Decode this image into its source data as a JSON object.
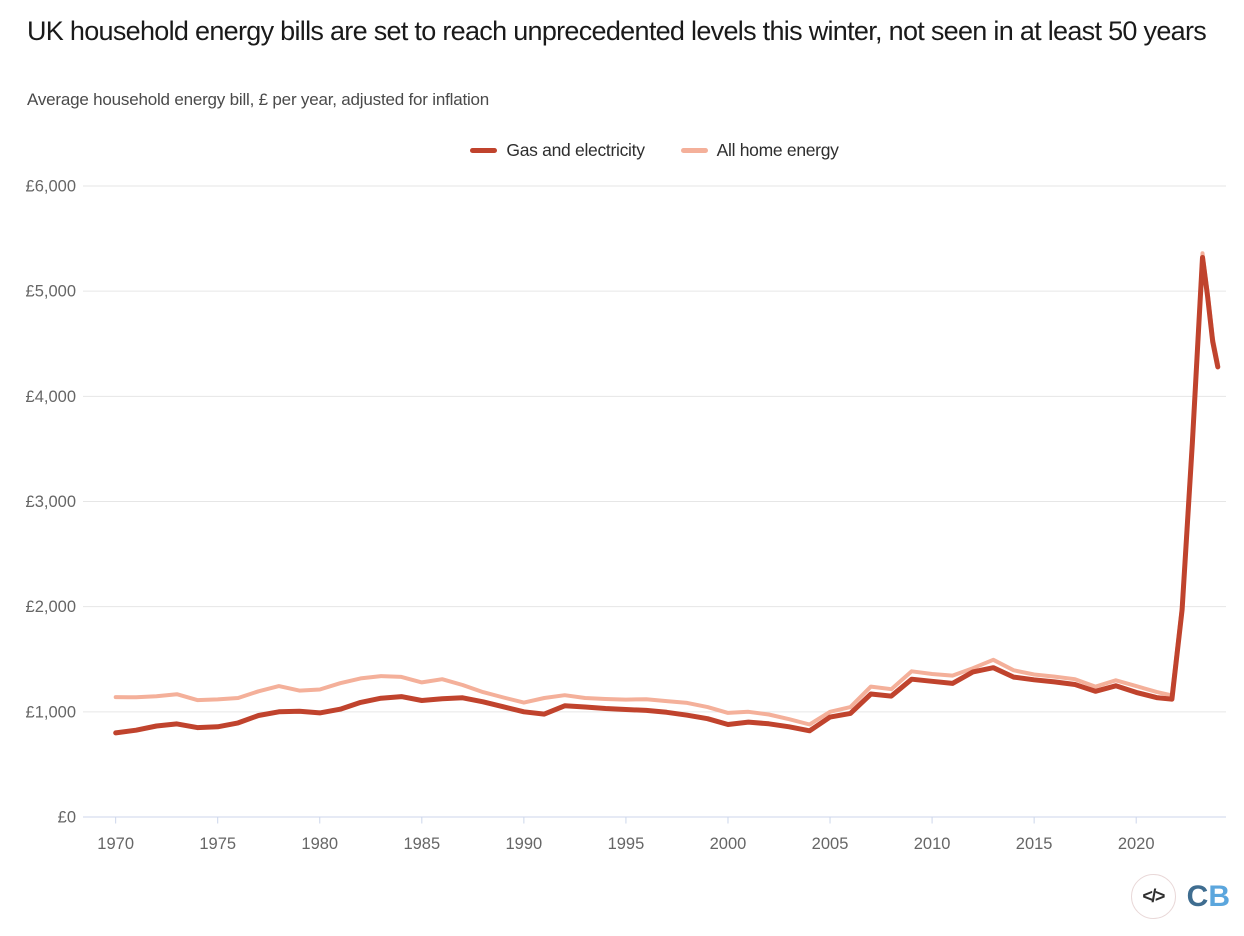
{
  "page": {
    "title": "UK household energy bills are set to reach unprecedented levels this winter, not seen in at least 50 years",
    "subtitle": "Average household energy bill, £ per year, adjusted for inflation"
  },
  "footer": {
    "code_icon": "</>",
    "logo_c": "C",
    "logo_b": "B",
    "logo_c_color": "#3f6d90",
    "logo_b_color": "#5ba6dd"
  },
  "chart_data": {
    "type": "line",
    "title": "UK household energy bills are set to reach unprecedented levels this winter, not seen in at least 50 years",
    "subtitle": "Average household energy bill, £ per year, adjusted for inflation",
    "xlabel": "",
    "ylabel": "£ per year",
    "x_range": [
      1968.4,
      2024.4
    ],
    "y_range": [
      0,
      6000
    ],
    "x_ticks": [
      1970,
      1975,
      1980,
      1985,
      1990,
      1995,
      2000,
      2005,
      2010,
      2015,
      2020
    ],
    "y_ticks": [
      0,
      1000,
      2000,
      3000,
      4000,
      5000,
      6000
    ],
    "y_tick_labels": [
      "£0",
      "£1,000",
      "£2,000",
      "£3,000",
      "£4,000",
      "£5,000",
      "£6,000"
    ],
    "grid": "horizontal",
    "legend_position": "top-center",
    "colors": {
      "grid": "#e6e6e6",
      "axis": "#ccd6eb",
      "tick_text": "#666666"
    },
    "series": [
      {
        "name": "Gas and electricity",
        "color": "#c0432d",
        "width": 5,
        "points": [
          [
            1970,
            800
          ],
          [
            1971,
            825
          ],
          [
            1972,
            865
          ],
          [
            1973,
            885
          ],
          [
            1974,
            850
          ],
          [
            1975,
            858
          ],
          [
            1976,
            895
          ],
          [
            1977,
            965
          ],
          [
            1978,
            1000
          ],
          [
            1979,
            1005
          ],
          [
            1980,
            990
          ],
          [
            1981,
            1025
          ],
          [
            1982,
            1090
          ],
          [
            1983,
            1130
          ],
          [
            1984,
            1145
          ],
          [
            1985,
            1108
          ],
          [
            1986,
            1125
          ],
          [
            1987,
            1133
          ],
          [
            1988,
            1095
          ],
          [
            1989,
            1048
          ],
          [
            1990,
            1000
          ],
          [
            1991,
            978
          ],
          [
            1992,
            1057
          ],
          [
            1993,
            1046
          ],
          [
            1994,
            1032
          ],
          [
            1995,
            1022
          ],
          [
            1996,
            1014
          ],
          [
            1997,
            996
          ],
          [
            1998,
            968
          ],
          [
            1999,
            935
          ],
          [
            2000,
            880
          ],
          [
            2001,
            902
          ],
          [
            2002,
            886
          ],
          [
            2003,
            858
          ],
          [
            2004,
            820
          ],
          [
            2005,
            950
          ],
          [
            2006,
            985
          ],
          [
            2007,
            1170
          ],
          [
            2008,
            1150
          ],
          [
            2009,
            1310
          ],
          [
            2010,
            1290
          ],
          [
            2011,
            1270
          ],
          [
            2012,
            1380
          ],
          [
            2013,
            1420
          ],
          [
            2014,
            1330
          ],
          [
            2015,
            1305
          ],
          [
            2016,
            1285
          ],
          [
            2017,
            1260
          ],
          [
            2018,
            1195
          ],
          [
            2019,
            1248
          ],
          [
            2020,
            1185
          ],
          [
            2021,
            1135
          ],
          [
            2021.75,
            1120
          ],
          [
            2022.25,
            1971
          ],
          [
            2022.75,
            3549
          ],
          [
            2023.25,
            5320
          ],
          [
            2023.5,
            4950
          ],
          [
            2023.75,
            4520
          ],
          [
            2024,
            4280
          ]
        ]
      },
      {
        "name": "All home energy",
        "color": "#f4b09a",
        "width": 4,
        "points": [
          [
            1970,
            1140
          ],
          [
            1971,
            1138
          ],
          [
            1972,
            1148
          ],
          [
            1973,
            1168
          ],
          [
            1974,
            1112
          ],
          [
            1975,
            1118
          ],
          [
            1976,
            1132
          ],
          [
            1977,
            1195
          ],
          [
            1978,
            1245
          ],
          [
            1979,
            1202
          ],
          [
            1980,
            1212
          ],
          [
            1981,
            1272
          ],
          [
            1982,
            1318
          ],
          [
            1983,
            1340
          ],
          [
            1984,
            1332
          ],
          [
            1985,
            1280
          ],
          [
            1986,
            1310
          ],
          [
            1987,
            1255
          ],
          [
            1988,
            1188
          ],
          [
            1989,
            1136
          ],
          [
            1990,
            1088
          ],
          [
            1991,
            1132
          ],
          [
            1992,
            1158
          ],
          [
            1993,
            1132
          ],
          [
            1994,
            1122
          ],
          [
            1995,
            1116
          ],
          [
            1996,
            1120
          ],
          [
            1997,
            1102
          ],
          [
            1998,
            1085
          ],
          [
            1999,
            1045
          ],
          [
            2000,
            990
          ],
          [
            2001,
            1000
          ],
          [
            2002,
            975
          ],
          [
            2003,
            930
          ],
          [
            2004,
            880
          ],
          [
            2005,
            1000
          ],
          [
            2006,
            1045
          ],
          [
            2007,
            1240
          ],
          [
            2008,
            1215
          ],
          [
            2009,
            1385
          ],
          [
            2010,
            1360
          ],
          [
            2011,
            1345
          ],
          [
            2012,
            1415
          ],
          [
            2013,
            1495
          ],
          [
            2014,
            1395
          ],
          [
            2015,
            1355
          ],
          [
            2016,
            1335
          ],
          [
            2017,
            1310
          ],
          [
            2018,
            1240
          ],
          [
            2019,
            1300
          ],
          [
            2020,
            1245
          ],
          [
            2021,
            1190
          ],
          [
            2021.75,
            1155
          ],
          [
            2022.25,
            2005
          ],
          [
            2022.75,
            3585
          ],
          [
            2023.25,
            5360
          ],
          [
            2023.5,
            4990
          ],
          [
            2023.75,
            4560
          ],
          [
            2024,
            4310
          ]
        ]
      }
    ]
  }
}
